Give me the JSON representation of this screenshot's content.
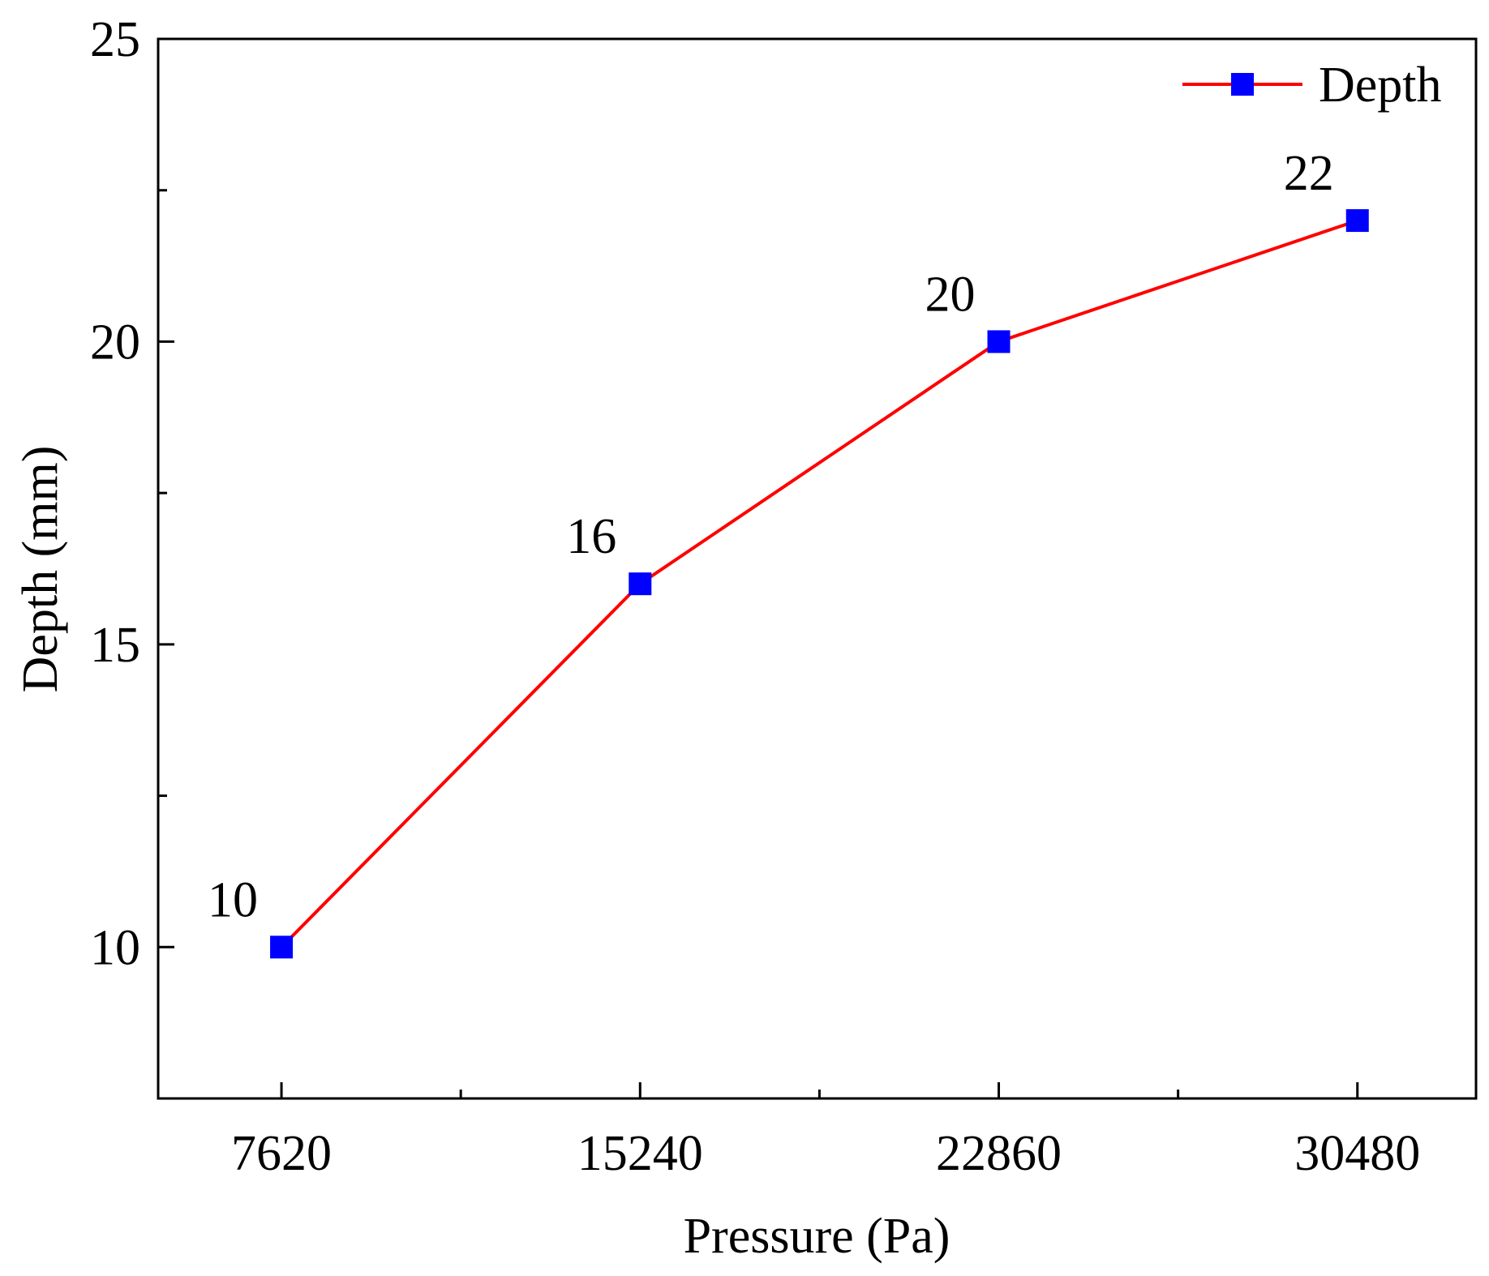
{
  "chart_data": {
    "type": "line",
    "title": "",
    "xlabel": "Pressure (Pa)",
    "ylabel": "Depth (mm)",
    "x": [
      7620,
      15240,
      22860,
      30480
    ],
    "x_tick_labels": [
      "7620",
      "15240",
      "22860",
      "30480"
    ],
    "xlim": [
      5000,
      33000
    ],
    "ylim": [
      7.5,
      25
    ],
    "y_ticks": [
      10,
      15,
      20,
      25
    ],
    "y_tick_labels": [
      "10",
      "15",
      "20",
      "25"
    ],
    "y_minor_ticks": [
      12.5,
      17.5,
      22.5
    ],
    "grid": false,
    "legend_position": "top-right",
    "series": [
      {
        "name": "Depth",
        "values": [
          10,
          16,
          20,
          22
        ],
        "data_labels": [
          "10",
          "16",
          "20",
          "22"
        ],
        "line_color": "#ff0000",
        "marker": "square",
        "marker_color": "#0000ff"
      }
    ]
  }
}
